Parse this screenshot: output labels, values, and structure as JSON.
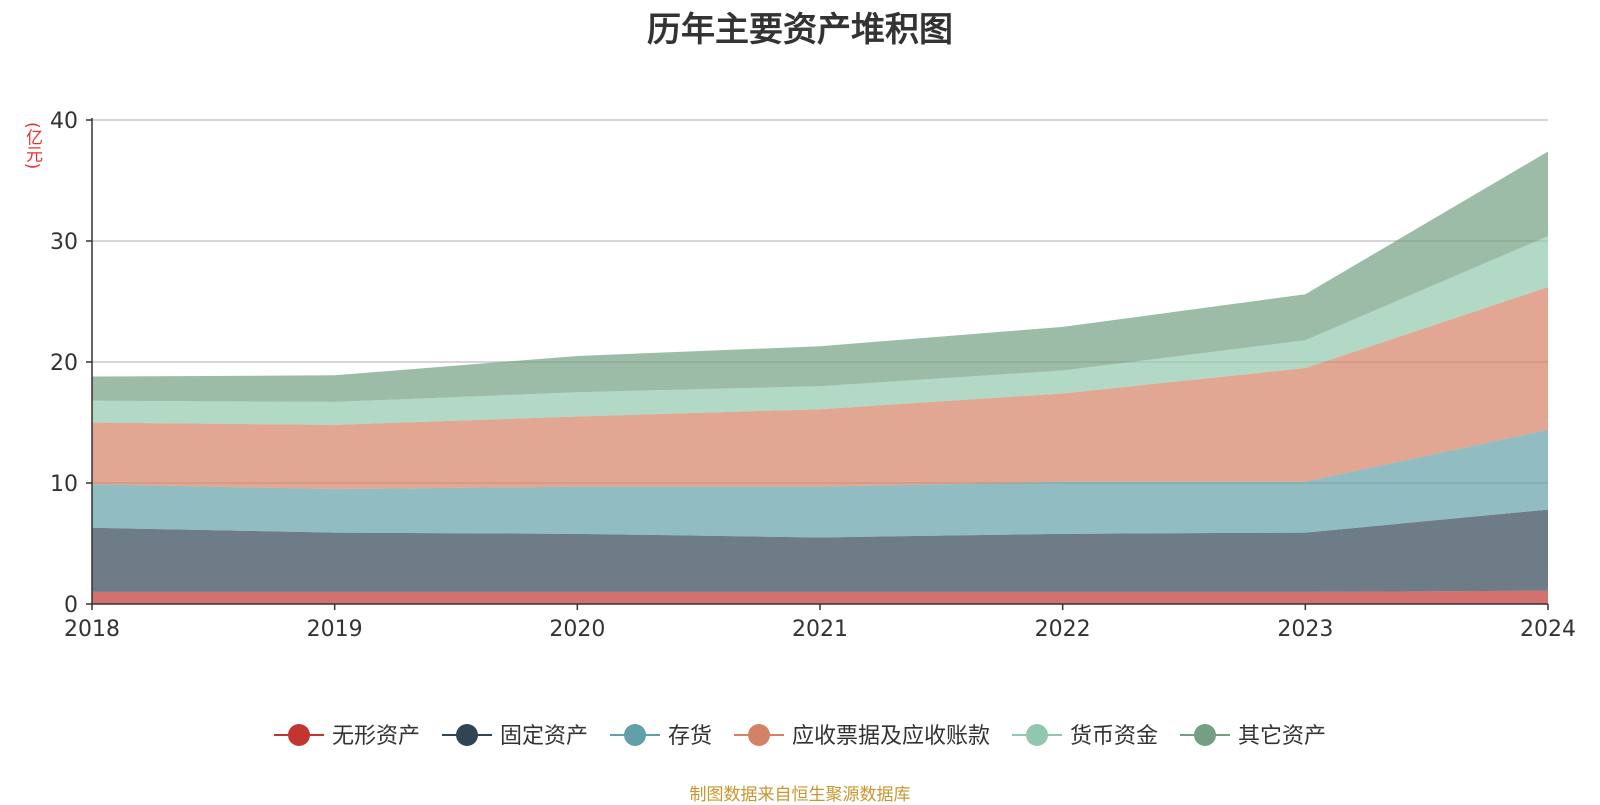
{
  "chart_data": {
    "type": "area",
    "stacked": true,
    "title": "历年主要资产堆积图",
    "ylabel": "(亿元)",
    "categories": [
      "2018",
      "2019",
      "2020",
      "2021",
      "2022",
      "2023",
      "2024"
    ],
    "ylim": [
      0,
      40
    ],
    "yticks": [
      0,
      10,
      20,
      30,
      40
    ],
    "grid": true,
    "legend_position": "bottom",
    "series": [
      {
        "name": "无形资产",
        "color": "#c23531",
        "values": [
          1.0,
          1.0,
          1.0,
          1.0,
          1.0,
          1.0,
          1.1
        ]
      },
      {
        "name": "固定资产",
        "color": "#2f4554",
        "values": [
          5.3,
          4.9,
          4.8,
          4.5,
          4.8,
          4.9,
          6.7
        ]
      },
      {
        "name": "存货",
        "color": "#61a0a8",
        "values": [
          3.6,
          3.6,
          3.9,
          4.2,
          4.3,
          4.2,
          6.6
        ]
      },
      {
        "name": "应收票据及应收账款",
        "color": "#d48265",
        "values": [
          5.1,
          5.3,
          5.8,
          6.4,
          7.3,
          9.4,
          11.8
        ]
      },
      {
        "name": "货币资金",
        "color": "#91c7ae",
        "values": [
          1.8,
          1.9,
          2.0,
          1.9,
          1.9,
          2.3,
          4.2
        ]
      },
      {
        "name": "其它资产",
        "color": "#749f83",
        "values": [
          2.0,
          2.2,
          3.0,
          3.3,
          3.6,
          3.8,
          7.0
        ]
      }
    ]
  },
  "footer": {
    "source": "制图数据来自恒生聚源数据库"
  }
}
